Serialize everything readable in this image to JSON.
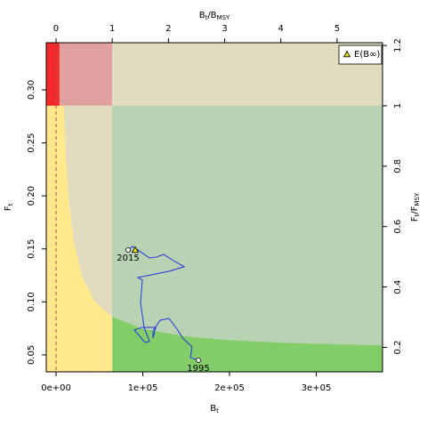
{
  "chart_data": {
    "type": "kobe",
    "xlabel": [
      "B",
      "t"
    ],
    "x2label": [
      "B",
      "t",
      "/B",
      "MSY"
    ],
    "ylabel": [
      "F",
      "t"
    ],
    "y2label": [
      "F",
      "t",
      "/F",
      "MSY"
    ],
    "xlim": [
      -11300,
      376400
    ],
    "ylim": [
      0.034,
      0.3445
    ],
    "x2lim": [
      -0.174,
      5.809
    ],
    "y2lim": [
      0.119,
      1.209
    ],
    "xticks": [
      {
        "value": 0,
        "label": "0e+00"
      },
      {
        "value": 100000,
        "label": "1e+05"
      },
      {
        "value": 200000,
        "label": "2e+05"
      },
      {
        "value": 300000,
        "label": "3e+05"
      }
    ],
    "yticks": [
      0.05,
      {
        "value": 0.1,
        "label": "0.10"
      },
      0.15,
      {
        "value": 0.2,
        "label": "0.20"
      },
      0.25,
      {
        "value": 0.3,
        "label": "0.30"
      }
    ],
    "x2ticks": [
      0,
      1,
      2,
      3,
      4,
      5
    ],
    "y2ticks": [
      0.2,
      0.4,
      0.6,
      0.8,
      1,
      1.2
    ],
    "reference": {
      "blim": 4000,
      "bmsy": 64800,
      "fmsy": 0.285,
      "vline": 0
    },
    "zone_colors": {
      "red": "#f42a2a",
      "pink": "#e1a1a1",
      "beige": "#e1dcbf",
      "yellow": "#ffe98c",
      "green": "#82cd68",
      "greygreen": "#b9d2b4",
      "vline": "#b05050"
    },
    "equilibrium_curve": {
      "x": [
        7400,
        8000,
        9000,
        10000,
        12000,
        15000,
        20000,
        30000,
        45000,
        64800,
        100000,
        150000,
        200000,
        250000,
        300000,
        376400
      ],
      "y": [
        0.338,
        0.317,
        0.287,
        0.264,
        0.229,
        0.194,
        0.159,
        0.124,
        0.1,
        0.0859,
        0.0745,
        0.0674,
        0.0639,
        0.0618,
        0.0604,
        0.059
      ]
    },
    "trajectory": {
      "color": "#2233dd",
      "start_label": "1995",
      "end_label": "2015",
      "x": [
        164100,
        154900,
        156900,
        146700,
        139500,
        130300,
        120000,
        111800,
        111800,
        114900,
        99500,
        90300,
        102600,
        107700,
        101500,
        97400,
        99500,
        94400,
        109700,
        130300,
        147700,
        135400,
        124100,
        115900,
        107700,
        94400,
        88200,
        83100
      ],
      "y": [
        0.045,
        0.0475,
        0.0576,
        0.0651,
        0.0743,
        0.0844,
        0.0827,
        0.0727,
        0.0659,
        0.076,
        0.076,
        0.0735,
        0.0617,
        0.0626,
        0.076,
        0.0995,
        0.1205,
        0.123,
        0.1255,
        0.1289,
        0.1331,
        0.1389,
        0.1448,
        0.1423,
        0.1414,
        0.149,
        0.1523,
        0.149
      ]
    },
    "series": [
      {
        "name": "E(B∞)",
        "color": "#e8e000",
        "x": [
          91300
        ],
        "values": [
          0.149
        ]
      }
    ],
    "legend": "top-right"
  }
}
